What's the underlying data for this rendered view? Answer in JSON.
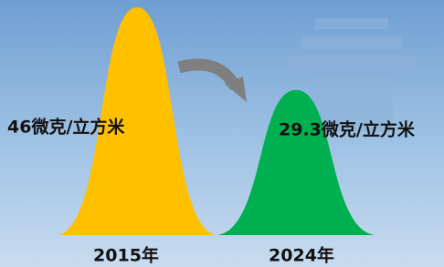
{
  "chart_data": {
    "type": "peak",
    "categories": [
      "2015年",
      "2024年"
    ],
    "values": [
      46,
      29.3
    ],
    "value_labels": [
      "46微克/立方米",
      "29.3微克/立方米"
    ],
    "colors": [
      "#ffc000",
      "#00b050"
    ]
  }
}
